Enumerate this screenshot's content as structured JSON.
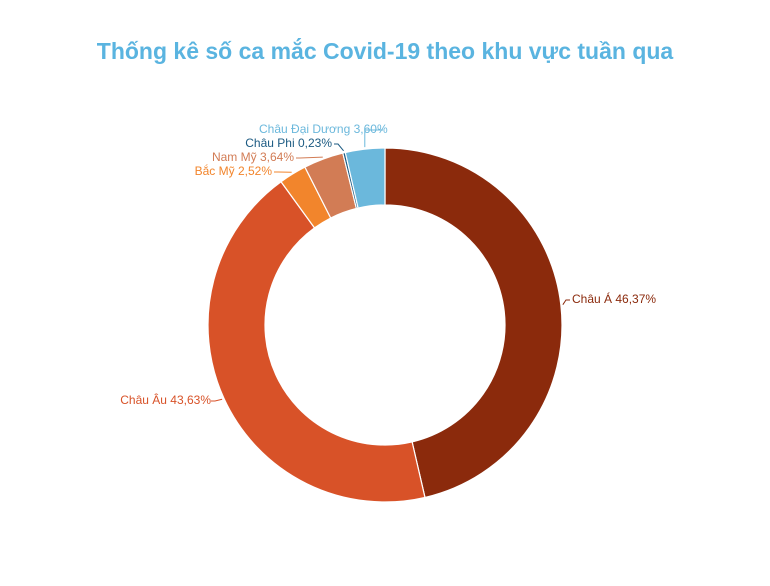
{
  "chart_data": {
    "type": "pie",
    "donut": true,
    "title": "Thống kê số ca mắc Covid-19 theo khu vực tuần qua",
    "slices": [
      {
        "label": "Châu Á 46,37%",
        "value": 46.37,
        "color": "#8b2a0c"
      },
      {
        "label": "Châu Âu 43,63%",
        "value": 43.63,
        "color": "#d85228"
      },
      {
        "label": "Bắc Mỹ 2,52%",
        "value": 2.52,
        "color": "#f2852c"
      },
      {
        "label": "Nam Mỹ 3,64%",
        "value": 3.64,
        "color": "#d27c55"
      },
      {
        "label": "Châu Phi  0,23%",
        "value": 0.23,
        "color": "#1b5a82"
      },
      {
        "label": "Châu Đại Dương 3,60%",
        "value": 3.6,
        "color": "#6bb8dc"
      }
    ]
  }
}
